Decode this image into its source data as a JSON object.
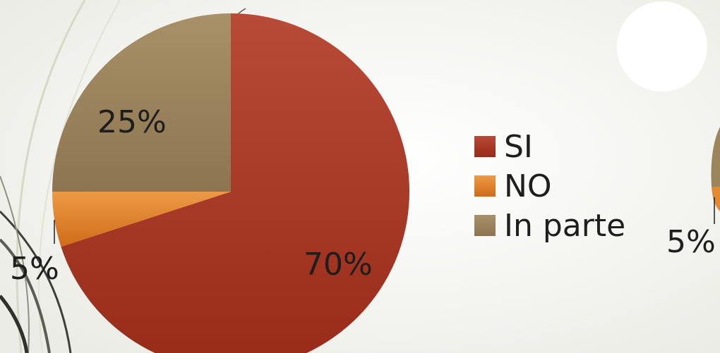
{
  "chart_data": {
    "type": "pie",
    "categories": [
      "SI",
      "NO",
      "In parte"
    ],
    "values": [
      70,
      5,
      25
    ],
    "labels": [
      "70%",
      "5%",
      "25%"
    ],
    "colors": [
      "#a63a26",
      "#e38a32",
      "#9c845c"
    ],
    "legend_position": "right"
  },
  "legend": {
    "items": [
      {
        "label": "SI",
        "color": "#a63a26"
      },
      {
        "label": "NO",
        "color": "#e38a32"
      },
      {
        "label": "In parte",
        "color": "#9c845c"
      }
    ]
  },
  "partial_second_chart": {
    "label": "5%"
  }
}
